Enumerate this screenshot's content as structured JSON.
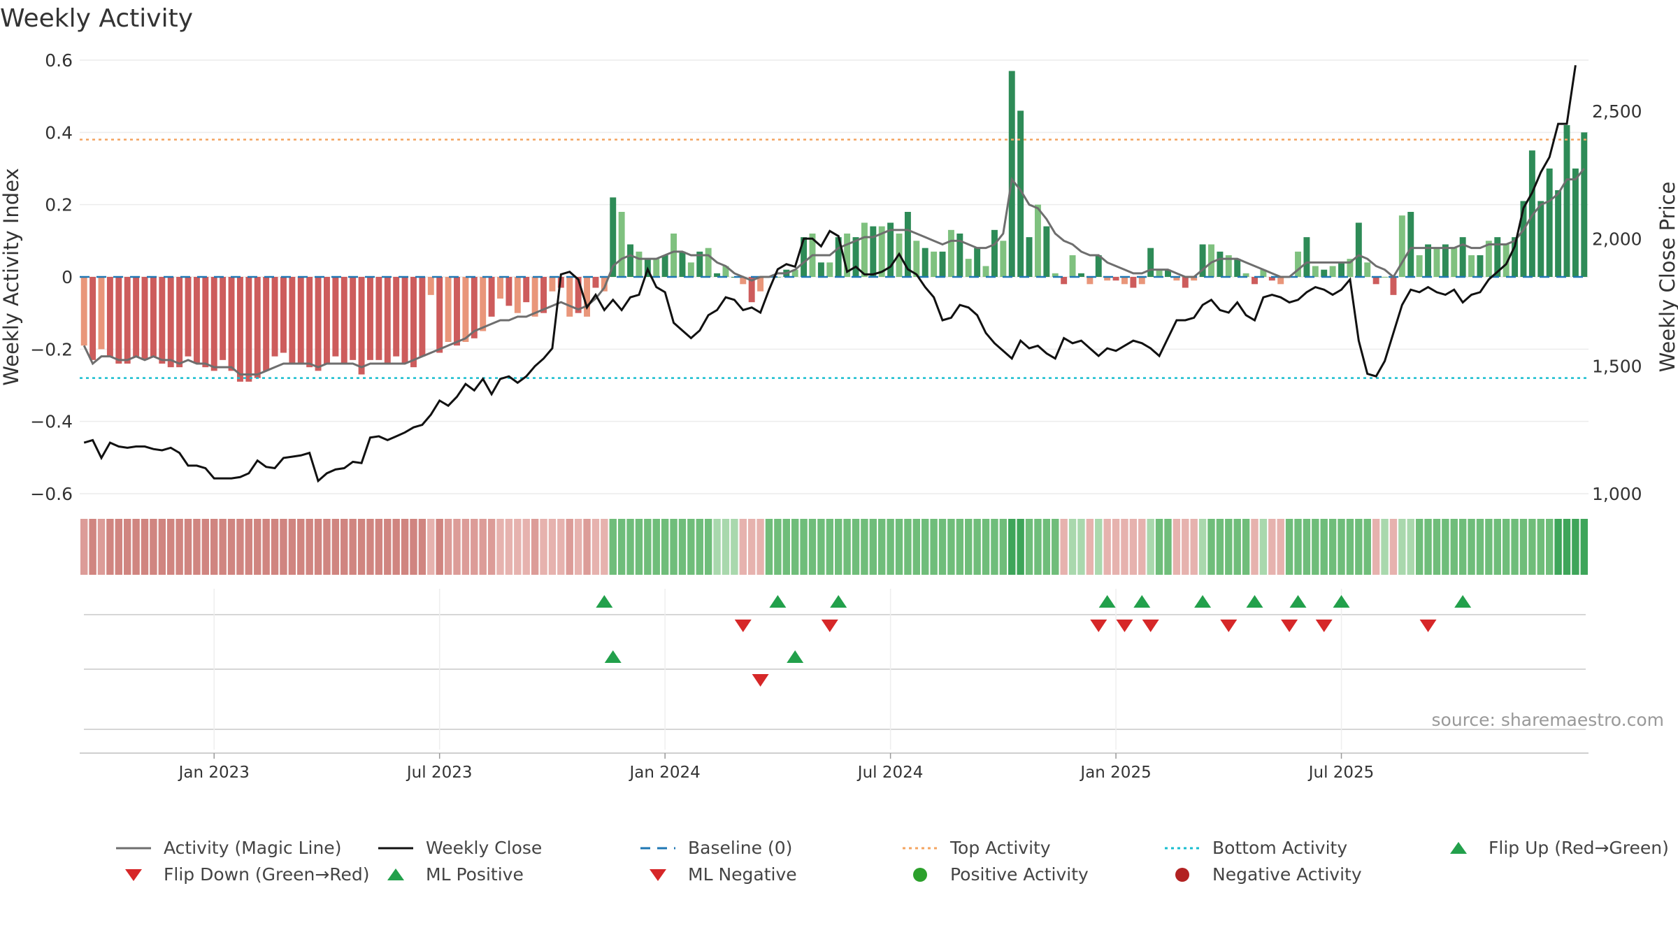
{
  "title": "Weekly Activity",
  "source": "source: sharemaestro.com",
  "colors": {
    "strong_green": "#2e8b57",
    "light_green": "#7fc17f",
    "strong_red": "#cd5c5c",
    "light_red": "#e9967a",
    "magic_line": "#6e6e6e",
    "close": "#111111",
    "baseline": "#1f77b4",
    "top": "#f4a460",
    "bottom": "#17becf",
    "marker_green": "#22a04b",
    "marker_red": "#d62728",
    "pos_dot": "#2ca02c",
    "neg_dot": "#b22222"
  },
  "legend": [
    {
      "label": "Activity (Magic Line)",
      "kind": "line",
      "color": "#6e6e6e"
    },
    {
      "label": "Weekly Close",
      "kind": "line",
      "color": "#111111"
    },
    {
      "label": "Baseline (0)",
      "kind": "dash",
      "color": "#1f77b4"
    },
    {
      "label": "Top Activity",
      "kind": "dot-line",
      "color": "#f4a460"
    },
    {
      "label": "Bottom Activity",
      "kind": "dot-line",
      "color": "#17becf"
    },
    {
      "label": "Flip Up (Red→Green)",
      "kind": "tri-up",
      "color": "#22a04b"
    },
    {
      "label": "Flip Down (Green→Red)",
      "kind": "tri-down",
      "color": "#d62728"
    },
    {
      "label": "ML Positive",
      "kind": "tri-up",
      "color": "#22a04b"
    },
    {
      "label": "ML Negative",
      "kind": "tri-down",
      "color": "#d62728"
    },
    {
      "label": "Positive Activity",
      "kind": "circle",
      "color": "#2ca02c"
    },
    {
      "label": "Negative Activity",
      "kind": "circle",
      "color": "#b22222"
    }
  ],
  "chart_data": {
    "type": "bar",
    "title": "Weekly Activity",
    "ylabel": "Weekly Activity Index",
    "y2label": "Weekly Close Price",
    "ylim": [
      -0.6,
      0.6
    ],
    "y2lim": [
      1000,
      2700
    ],
    "yticks": [
      "0.6",
      "0.4",
      "0.2",
      "0",
      "−0.2",
      "−0.4",
      "−0.6"
    ],
    "y2ticks": [
      "2,500",
      "2,000",
      "1,500",
      "1,000"
    ],
    "x_ticks": [
      "Jan 2023",
      "Jul 2023",
      "Jan 2024",
      "Jul 2024",
      "Jan 2025",
      "Jul 2025"
    ],
    "top_activity": 0.38,
    "bottom_activity": -0.28,
    "baseline": 0,
    "activity": [
      -0.19,
      -0.23,
      -0.2,
      -0.22,
      -0.24,
      -0.24,
      -0.22,
      -0.23,
      -0.22,
      -0.24,
      -0.25,
      -0.25,
      -0.22,
      -0.24,
      -0.25,
      -0.26,
      -0.23,
      -0.26,
      -0.29,
      -0.29,
      -0.28,
      -0.26,
      -0.22,
      -0.21,
      -0.24,
      -0.24,
      -0.25,
      -0.26,
      -0.24,
      -0.22,
      -0.24,
      -0.23,
      -0.27,
      -0.23,
      -0.23,
      -0.24,
      -0.22,
      -0.24,
      -0.25,
      -0.22,
      -0.05,
      -0.21,
      -0.18,
      -0.19,
      -0.18,
      -0.17,
      -0.15,
      -0.11,
      -0.06,
      -0.08,
      -0.1,
      -0.07,
      -0.11,
      -0.1,
      -0.04,
      -0.03,
      -0.11,
      -0.1,
      -0.11,
      -0.03,
      -0.04,
      0.22,
      0.18,
      0.09,
      0.07,
      0.05,
      0.05,
      0.06,
      0.12,
      0.07,
      0.04,
      0.07,
      0.08,
      0.01,
      0.03,
      0.0,
      -0.02,
      -0.07,
      -0.04,
      0.0,
      0.0,
      0.02,
      0.02,
      0.11,
      0.12,
      0.04,
      0.04,
      0.11,
      0.12,
      0.11,
      0.15,
      0.14,
      0.14,
      0.15,
      0.12,
      0.18,
      0.1,
      0.08,
      0.07,
      0.07,
      0.13,
      0.12,
      0.05,
      0.08,
      0.03,
      0.13,
      0.1,
      0.57,
      0.46,
      0.11,
      0.2,
      0.14,
      0.01,
      -0.02,
      0.06,
      0.01,
      -0.02,
      0.06,
      -0.01,
      -0.01,
      -0.02,
      -0.03,
      -0.02,
      0.08,
      0.02,
      0.02,
      -0.01,
      -0.03,
      -0.01,
      0.09,
      0.09,
      0.07,
      0.06,
      0.05,
      0.01,
      -0.02,
      0.02,
      -0.01,
      -0.02,
      0.0,
      0.07,
      0.11,
      0.03,
      0.02,
      0.03,
      0.04,
      0.05,
      0.15,
      0.04,
      -0.02,
      0.0,
      -0.05,
      0.17,
      0.18,
      0.06,
      0.09,
      0.08,
      0.09,
      0.08,
      0.11,
      0.06,
      0.06,
      0.1,
      0.11,
      0.09,
      0.11,
      0.21,
      0.35,
      0.21,
      0.3,
      0.24,
      0.42,
      0.3,
      0.4
    ],
    "magic_line": [
      -0.19,
      -0.24,
      -0.22,
      -0.22,
      -0.23,
      -0.23,
      -0.22,
      -0.23,
      -0.22,
      -0.23,
      -0.23,
      -0.24,
      -0.23,
      -0.24,
      -0.24,
      -0.25,
      -0.25,
      -0.25,
      -0.27,
      -0.27,
      -0.27,
      -0.26,
      -0.25,
      -0.24,
      -0.24,
      -0.24,
      -0.24,
      -0.25,
      -0.24,
      -0.24,
      -0.24,
      -0.24,
      -0.25,
      -0.24,
      -0.24,
      -0.24,
      -0.24,
      -0.24,
      -0.23,
      -0.22,
      -0.21,
      -0.2,
      -0.19,
      -0.18,
      -0.17,
      -0.15,
      -0.14,
      -0.13,
      -0.12,
      -0.12,
      -0.11,
      -0.11,
      -0.1,
      -0.09,
      -0.08,
      -0.07,
      -0.08,
      -0.09,
      -0.08,
      -0.06,
      -0.03,
      0.03,
      0.05,
      0.06,
      0.05,
      0.05,
      0.05,
      0.06,
      0.07,
      0.07,
      0.06,
      0.06,
      0.06,
      0.04,
      0.03,
      0.01,
      0.0,
      -0.01,
      0.0,
      0.0,
      0.01,
      0.01,
      0.02,
      0.04,
      0.06,
      0.06,
      0.06,
      0.08,
      0.09,
      0.1,
      0.11,
      0.11,
      0.12,
      0.13,
      0.13,
      0.13,
      0.12,
      0.11,
      0.1,
      0.09,
      0.1,
      0.1,
      0.09,
      0.08,
      0.08,
      0.09,
      0.12,
      0.27,
      0.24,
      0.2,
      0.19,
      0.16,
      0.12,
      0.1,
      0.09,
      0.07,
      0.06,
      0.06,
      0.04,
      0.03,
      0.02,
      0.01,
      0.01,
      0.02,
      0.02,
      0.02,
      0.01,
      0.0,
      0.0,
      0.02,
      0.04,
      0.05,
      0.05,
      0.05,
      0.04,
      0.03,
      0.02,
      0.01,
      0.0,
      0.0,
      0.02,
      0.04,
      0.04,
      0.04,
      0.04,
      0.04,
      0.04,
      0.06,
      0.05,
      0.03,
      0.02,
      0.0,
      0.04,
      0.08,
      0.08,
      0.08,
      0.08,
      0.08,
      0.08,
      0.09,
      0.08,
      0.08,
      0.09,
      0.09,
      0.09,
      0.1,
      0.13,
      0.17,
      0.2,
      0.21,
      0.23,
      0.27,
      0.27,
      0.3
    ],
    "weekly_close": [
      1200,
      1210,
      1140,
      1200,
      1185,
      1180,
      1185,
      1185,
      1175,
      1170,
      1180,
      1160,
      1110,
      1110,
      1100,
      1060,
      1060,
      1060,
      1065,
      1080,
      1130,
      1105,
      1100,
      1140,
      1145,
      1150,
      1160,
      1050,
      1080,
      1095,
      1100,
      1125,
      1120,
      1220,
      1225,
      1210,
      1225,
      1240,
      1260,
      1270,
      1310,
      1365,
      1345,
      1380,
      1430,
      1405,
      1450,
      1390,
      1450,
      1460,
      1435,
      1460,
      1500,
      1530,
      1570,
      1860,
      1870,
      1840,
      1730,
      1780,
      1720,
      1760,
      1720,
      1770,
      1780,
      1880,
      1810,
      1790,
      1670,
      1640,
      1610,
      1640,
      1700,
      1720,
      1770,
      1760,
      1720,
      1730,
      1710,
      1800,
      1880,
      1900,
      1890,
      2000,
      2000,
      1970,
      2030,
      2010,
      1870,
      1890,
      1860,
      1860,
      1870,
      1890,
      1940,
      1880,
      1860,
      1810,
      1770,
      1680,
      1690,
      1740,
      1730,
      1700,
      1630,
      1590,
      1560,
      1530,
      1600,
      1570,
      1580,
      1550,
      1530,
      1610,
      1590,
      1600,
      1570,
      1540,
      1570,
      1560,
      1580,
      1600,
      1590,
      1570,
      1540,
      1610,
      1680,
      1680,
      1690,
      1740,
      1760,
      1720,
      1710,
      1750,
      1700,
      1680,
      1770,
      1780,
      1770,
      1750,
      1760,
      1790,
      1810,
      1800,
      1780,
      1800,
      1840,
      1600,
      1470,
      1460,
      1520,
      1630,
      1740,
      1800,
      1790,
      1810,
      1790,
      1780,
      1800,
      1750,
      1780,
      1790,
      1840,
      1870,
      1900,
      1970,
      2120,
      2180,
      2260,
      2320,
      2450,
      2450,
      2680
    ],
    "ribbon_levels": [
      1,
      1,
      1,
      1,
      1,
      1,
      1,
      1,
      1,
      1,
      1,
      1,
      1,
      1,
      1,
      1,
      1,
      1,
      1,
      1,
      1,
      1,
      1,
      1,
      1,
      1,
      1,
      1,
      1,
      1,
      1,
      1,
      1,
      1,
      1,
      1,
      1,
      1,
      1,
      1,
      1,
      1,
      1,
      1,
      1,
      1,
      1,
      1,
      1,
      1,
      1,
      1,
      1,
      1,
      1,
      1,
      1,
      1,
      1,
      1,
      1,
      2,
      2,
      2,
      2,
      2,
      2,
      2,
      2,
      2,
      2,
      2,
      2,
      1,
      1,
      1,
      1,
      1,
      2,
      2,
      2,
      2,
      2,
      2,
      2,
      2,
      2,
      2,
      2,
      2,
      2,
      2,
      2,
      2,
      2,
      2,
      2,
      2,
      2,
      2,
      2,
      2,
      2,
      2,
      2,
      2,
      2,
      3,
      3,
      2,
      2,
      2,
      2,
      1,
      1,
      1,
      1,
      1,
      1,
      1,
      1,
      1,
      1,
      1,
      2,
      2,
      2,
      2,
      1,
      1,
      2,
      2,
      2,
      2,
      2,
      2,
      1,
      2,
      2,
      2,
      2,
      2,
      2,
      2,
      2,
      2,
      2,
      2,
      2,
      1,
      1,
      1,
      1,
      1,
      2,
      2,
      2,
      2,
      2,
      2,
      2,
      2,
      2,
      2,
      2,
      2,
      2,
      2,
      2,
      2,
      3,
      3,
      3,
      3,
      3,
      3,
      3
    ],
    "events": {
      "flip_up": [
        60,
        80,
        87,
        118,
        122,
        129,
        135,
        140,
        145,
        159
      ],
      "flip_down": [
        76,
        86,
        117,
        120,
        123,
        132,
        139,
        143,
        155
      ],
      "ml_positive": [
        61,
        82
      ],
      "ml_negative": [
        78
      ],
      "positive_activity": [],
      "negative_activity": []
    }
  }
}
